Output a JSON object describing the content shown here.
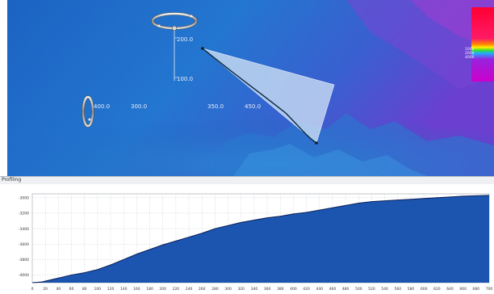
{
  "scene": {
    "distance_labels": [
      "200.0",
      "100.0",
      "400.0",
      "300.0",
      "350.0",
      "450.0"
    ],
    "legend_values": [
      "1000",
      "2000",
      "4000"
    ]
  },
  "profile_panel": {
    "title": "Profiling"
  },
  "chart_data": {
    "type": "area",
    "title": "",
    "xlabel": "",
    "ylabel": "",
    "xlim": [
      0,
      700
    ],
    "ylim": [
      -4100,
      -2950
    ],
    "x_ticks": [
      0,
      20,
      40,
      60,
      80,
      100,
      120,
      140,
      160,
      180,
      200,
      220,
      240,
      260,
      280,
      300,
      320,
      340,
      360,
      380,
      400,
      420,
      440,
      460,
      480,
      500,
      520,
      540,
      560,
      580,
      600,
      620,
      640,
      660,
      680,
      700
    ],
    "y_ticks": [
      -3000,
      -3200,
      -3400,
      -3600,
      -3800,
      -4000
    ],
    "y_tick_labels": [
      "-3000",
      "-3200",
      "-3400",
      "-3600",
      "-3800",
      "-4000"
    ],
    "grid": true,
    "fill_color": "#1b55b0",
    "line_color": "#0a1f55",
    "series": [
      {
        "x": [
          0,
          15,
          30,
          45,
          60,
          80,
          100,
          120,
          140,
          160,
          180,
          200,
          220,
          240,
          260,
          280,
          300,
          320,
          340,
          360,
          380,
          400,
          420,
          440,
          460,
          480,
          500,
          520,
          540,
          560,
          580,
          600,
          620,
          640,
          660,
          680,
          700
        ],
        "y": [
          -4100,
          -4090,
          -4060,
          -4030,
          -4000,
          -3970,
          -3930,
          -3870,
          -3800,
          -3730,
          -3670,
          -3610,
          -3560,
          -3510,
          -3460,
          -3400,
          -3360,
          -3320,
          -3290,
          -3260,
          -3240,
          -3210,
          -3190,
          -3160,
          -3130,
          -3100,
          -3070,
          -3050,
          -3040,
          -3030,
          -3020,
          -3010,
          -3000,
          -2990,
          -2980,
          -2975,
          -2970
        ]
      }
    ]
  }
}
